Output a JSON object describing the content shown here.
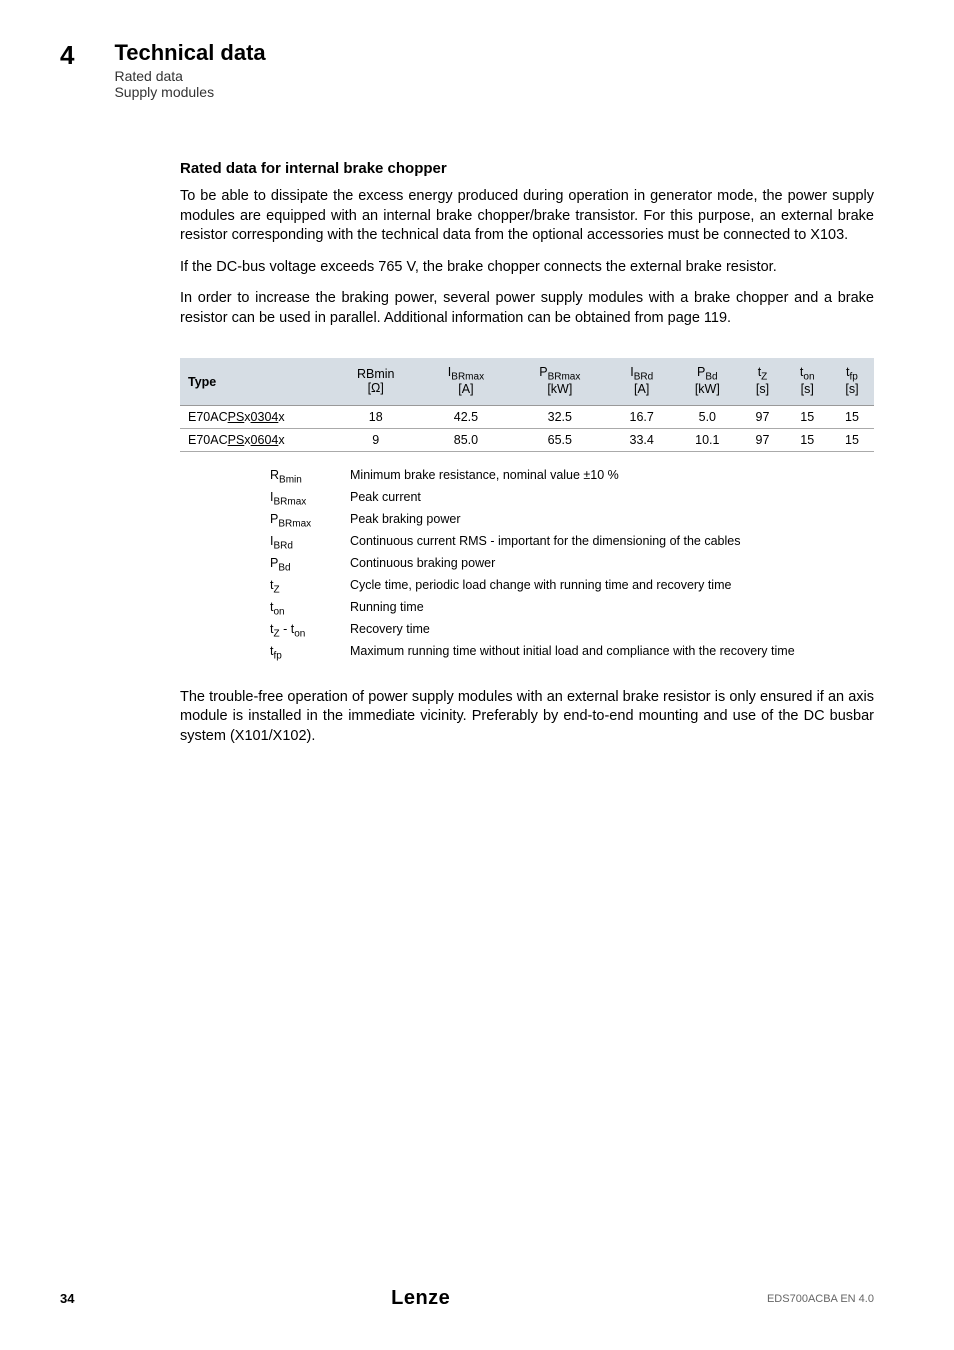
{
  "header": {
    "chapter_num": "4",
    "chapter_title": "Technical data",
    "sub1": "Rated data",
    "sub2": "Supply modules"
  },
  "section_heading": "Rated data for internal brake chopper",
  "paragraphs": {
    "p1": "To be able to dissipate the excess energy produced during operation in generator mode, the power supply modules are equipped with an internal brake chopper/brake transistor. For this purpose, an external brake resistor corresponding with the technical data from the optional accessories must be connected to X103.",
    "p2": "If the DC-bus voltage exceeds 765 V, the brake chopper connects the external brake resistor.",
    "p3": "In order to increase the braking power, several power supply modules with a brake chopper and a brake resistor can be used in parallel. Additional information can be obtained from page 119.",
    "p_after": "The trouble-free operation of power supply modules with an external brake resistor is only ensured if an axis module is installed in the immediate vicinity. Preferably by end-to-end mounting and use of the DC busbar system (X101/X102)."
  },
  "table": {
    "headers": {
      "type": "Type",
      "rbmin_l1": "RBmin",
      "rbmin_l2": "[Ω]",
      "ibrmax_l1": "I",
      "ibrmax_sub": "BRmax",
      "ibrmax_l2": "[A]",
      "pbrmax_l1": "P",
      "pbrmax_sub": "BRmax",
      "pbrmax_l2": "[kW]",
      "ibrd_l1": "I",
      "ibrd_sub": "BRd",
      "ibrd_l2": "[A]",
      "pbd_l1": "P",
      "pbd_sub": "Bd",
      "pbd_l2": "[kW]",
      "tz_l1": "t",
      "tz_sub": "Z",
      "tz_l2": "[s]",
      "ton_l1": "t",
      "ton_sub": "on",
      "ton_l2": "[s]",
      "tfp_l1": "t",
      "tfp_sub": "fp",
      "tfp_l2": "[s]"
    },
    "rows": [
      {
        "type_pre": "E70AC",
        "type_u1": "PS",
        "type_mid": "x",
        "type_u2": "0304",
        "type_post": "x",
        "rbmin": "18",
        "ibrmax": "42.5",
        "pbrmax": "32.5",
        "ibrd": "16.7",
        "pbd": "5.0",
        "tz": "97",
        "ton": "15",
        "tfp": "15"
      },
      {
        "type_pre": "E70AC",
        "type_u1": "PS",
        "type_mid": "x",
        "type_u2": "0604",
        "type_post": "x",
        "rbmin": "9",
        "ibrmax": "85.0",
        "pbrmax": "65.5",
        "ibrd": "33.4",
        "pbd": "10.1",
        "tz": "97",
        "ton": "15",
        "tfp": "15"
      }
    ],
    "col_widths": {
      "type": 150,
      "other": 74
    },
    "header_bg": "#d6dde4",
    "border_color": "#aaaaaa",
    "font_size": 12.5
  },
  "legend": [
    {
      "sym": "R",
      "sub": "Bmin",
      "desc": "Minimum brake resistance, nominal value ±10 %"
    },
    {
      "sym": "I",
      "sub": "BRmax",
      "desc": "Peak current"
    },
    {
      "sym": "P",
      "sub": "BRmax",
      "desc": "Peak braking power"
    },
    {
      "sym": "I",
      "sub": "BRd",
      "desc": "Continuous current RMS - important for the dimensioning of the cables"
    },
    {
      "sym": "P",
      "sub": "Bd",
      "desc": "Continuous braking power"
    },
    {
      "sym": "t",
      "sub": "Z",
      "desc": "Cycle time, periodic load change with running time and recovery time"
    },
    {
      "sym": "t",
      "sub": "on",
      "desc": "Running time"
    },
    {
      "sym": "t",
      "sub": "Z",
      "sym2": " - t",
      "sub2": "on",
      "desc": "Recovery time"
    },
    {
      "sym": "t",
      "sub": "fp",
      "desc": "Maximum running time without initial load and compliance with the recovery time"
    }
  ],
  "footer": {
    "page": "34",
    "brand": "Lenze",
    "doc": "EDS700ACBA EN 4.0"
  }
}
